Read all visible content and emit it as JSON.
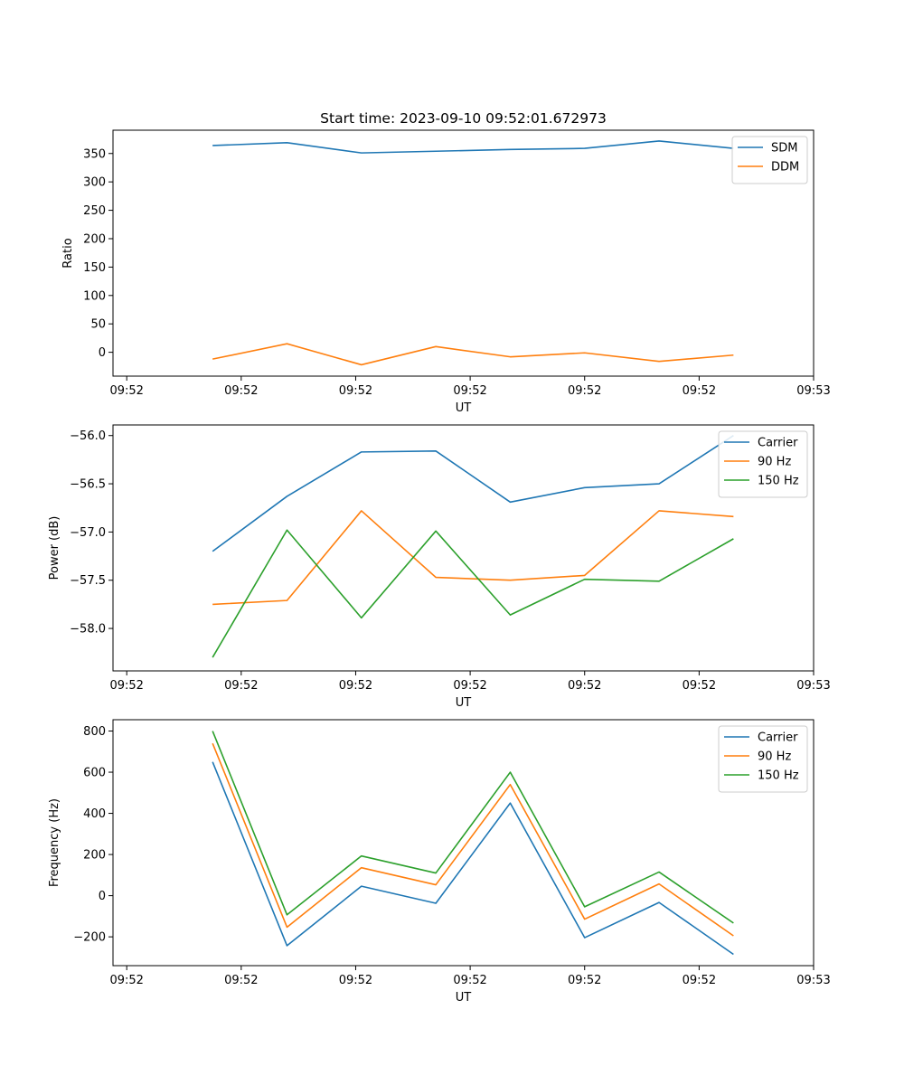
{
  "figure": {
    "title": "Start time: 2023-09-10 09:52:01.672973"
  },
  "chart_data": [
    {
      "type": "line",
      "title": "Start time: 2023-09-10 09:52:01.672973",
      "xlabel": "UT",
      "ylabel": "Ratio",
      "x": [
        0.75,
        1.4,
        2.05,
        2.7,
        3.35,
        4.0,
        4.65,
        5.3
      ],
      "xlim": [
        -0.12,
        6.0
      ],
      "xticks": [
        0,
        1,
        2,
        3,
        4,
        5,
        6
      ],
      "xtick_labels": [
        "09:52",
        "09:52",
        "09:52",
        "09:52",
        "09:52",
        "09:52",
        "09:53"
      ],
      "ylim": [
        -42,
        391
      ],
      "yticks": [
        0,
        50,
        100,
        150,
        200,
        250,
        300,
        350
      ],
      "ytick_labels": [
        "0",
        "50",
        "100",
        "150",
        "200",
        "250",
        "300",
        "350"
      ],
      "legend_position": "top-right",
      "series": [
        {
          "name": "SDM",
          "color": "#1f77b4",
          "values": [
            364,
            369,
            351,
            354,
            357,
            359,
            372,
            359
          ]
        },
        {
          "name": "DDM",
          "color": "#ff7f0e",
          "values": [
            -12,
            15,
            -22,
            10,
            -8,
            -1,
            -16,
            -5
          ]
        }
      ]
    },
    {
      "type": "line",
      "title": "",
      "xlabel": "UT",
      "ylabel": "Power (dB)",
      "x": [
        0.75,
        1.4,
        2.05,
        2.7,
        3.35,
        4.0,
        4.65,
        5.3
      ],
      "xlim": [
        -0.12,
        6.0
      ],
      "xticks": [
        0,
        1,
        2,
        3,
        4,
        5,
        6
      ],
      "xtick_labels": [
        "09:52",
        "09:52",
        "09:52",
        "09:52",
        "09:52",
        "09:52",
        "09:53"
      ],
      "ylim": [
        -58.44,
        -55.89
      ],
      "yticks": [
        -58.0,
        -57.5,
        -57.0,
        -56.5,
        -56.0
      ],
      "ytick_labels": [
        "−58.0",
        "−57.5",
        "−57.0",
        "−56.5",
        "−56.0"
      ],
      "legend_position": "top-right",
      "series": [
        {
          "name": "Carrier",
          "color": "#1f77b4",
          "values": [
            -57.2,
            -56.63,
            -56.17,
            -56.16,
            -56.69,
            -56.54,
            -56.5,
            -56.0
          ]
        },
        {
          "name": "90 Hz",
          "color": "#ff7f0e",
          "values": [
            -57.75,
            -57.71,
            -56.78,
            -57.47,
            -57.5,
            -57.45,
            -56.78,
            -56.84
          ]
        },
        {
          "name": "150 Hz",
          "color": "#2ca02c",
          "values": [
            -58.3,
            -56.98,
            -57.89,
            -56.99,
            -57.86,
            -57.49,
            -57.51,
            -57.07
          ]
        }
      ]
    },
    {
      "type": "line",
      "title": "",
      "xlabel": "UT",
      "ylabel": "Frequency (Hz)",
      "x": [
        0.75,
        1.4,
        2.05,
        2.7,
        3.35,
        4.0,
        4.65,
        5.3
      ],
      "xlim": [
        -0.12,
        6.0
      ],
      "xticks": [
        0,
        1,
        2,
        3,
        4,
        5,
        6
      ],
      "xtick_labels": [
        "09:52",
        "09:52",
        "09:52",
        "09:52",
        "09:52",
        "09:52",
        "09:53"
      ],
      "ylim": [
        -340,
        855
      ],
      "yticks": [
        -200,
        0,
        200,
        400,
        600,
        800
      ],
      "ytick_labels": [
        "−200",
        "0",
        "200",
        "400",
        "600",
        "800"
      ],
      "legend_position": "top-right",
      "series": [
        {
          "name": "Carrier",
          "color": "#1f77b4",
          "values": [
            650,
            -243,
            46,
            -37,
            450,
            -204,
            -33,
            -285
          ]
        },
        {
          "name": "90 Hz",
          "color": "#ff7f0e",
          "values": [
            740,
            -153,
            136,
            53,
            540,
            -114,
            57,
            -195
          ]
        },
        {
          "name": "150 Hz",
          "color": "#2ca02c",
          "values": [
            800,
            -93,
            193,
            110,
            600,
            -54,
            115,
            -133
          ]
        }
      ]
    }
  ]
}
